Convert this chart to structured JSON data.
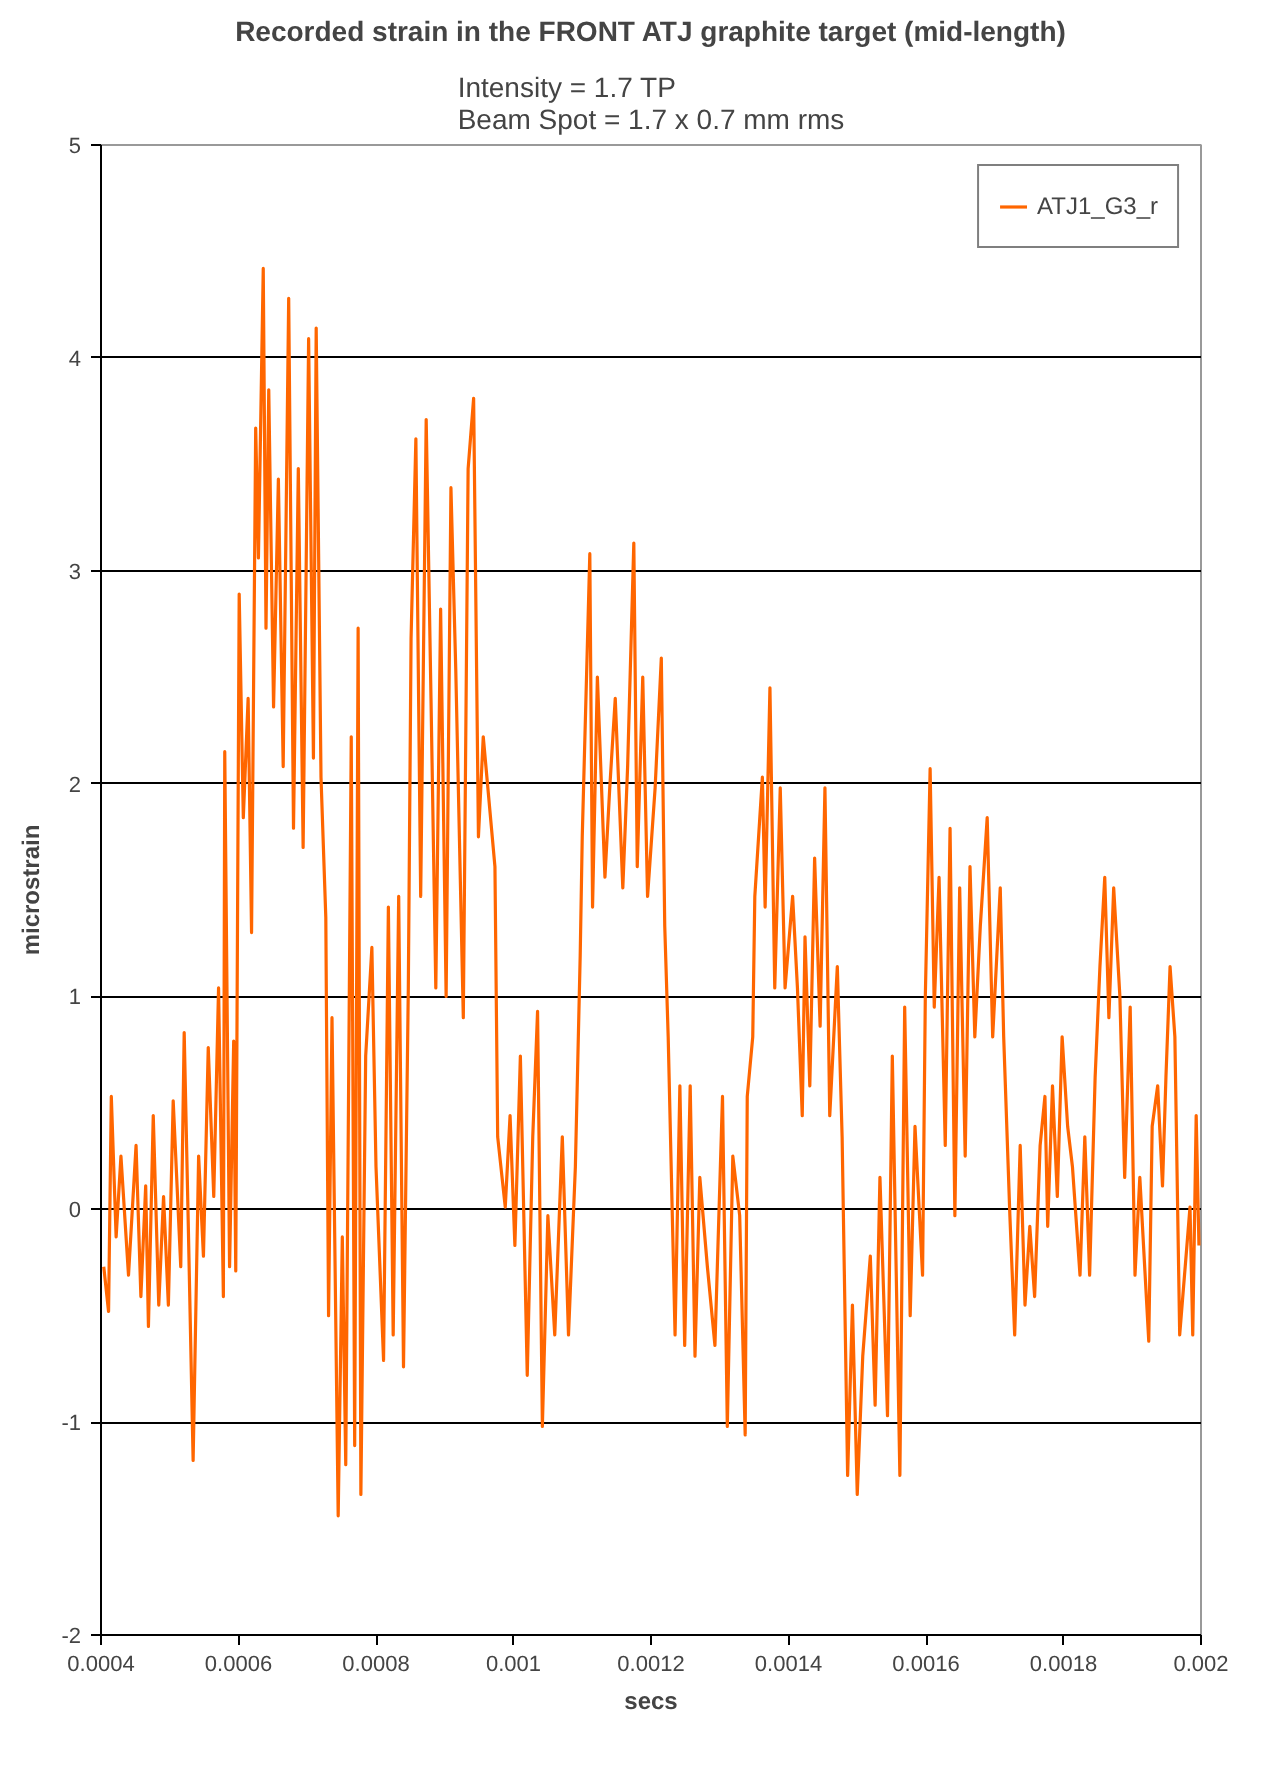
{
  "chart_data": {
    "type": "line",
    "title": "Recorded strain in the FRONT ATJ graphite target (mid-length)",
    "subtitle": "Intensity = 1.7 TP\nBeam Spot = 1.7 x 0.7 mm rms",
    "xlabel": "secs",
    "ylabel": "microstrain",
    "x": [
      0.000404,
      0.000411,
      0.000415,
      0.000422,
      0.000429,
      0.00044,
      0.000451,
      0.000458,
      0.000465,
      0.000469,
      0.000476,
      0.000484,
      0.000491,
      0.000498,
      0.000505,
      0.000516,
      0.000521,
      0.000527,
      0.000534,
      0.000542,
      0.000549,
      0.000556,
      0.000564,
      0.000571,
      0.000578,
      0.00058,
      0.000587,
      0.000593,
      0.000596,
      0.000601,
      0.000607,
      0.000614,
      0.000619,
      0.000625,
      0.000629,
      0.000636,
      0.00064,
      0.000644,
      0.000651,
      0.000658,
      0.000665,
      0.000673,
      0.00068,
      0.000687,
      0.000694,
      0.000702,
      0.000709,
      0.000713,
      0.00072,
      0.000727,
      0.000731,
      0.000736,
      0.000745,
      0.000751,
      0.000756,
      0.000764,
      0.000769,
      0.000774,
      0.000778,
      0.000785,
      0.000794,
      0.0008,
      0.000811,
      0.000818,
      0.000825,
      0.000833,
      0.00084,
      0.000847,
      0.000851,
      0.000858,
      0.000865,
      0.000873,
      0.00088,
      0.000887,
      0.000894,
      0.000902,
      0.000909,
      0.000916,
      0.000927,
      0.000934,
      0.000942,
      0.000949,
      0.000956,
      0.000973,
      0.000977,
      0.000988,
      0.000995,
      0.001002,
      0.00101,
      0.00102,
      0.001028,
      0.001035,
      0.001042,
      0.00105,
      0.00106,
      0.001071,
      0.00108,
      0.00109,
      0.001097,
      0.0011,
      0.001111,
      0.001115,
      0.001122,
      0.001133,
      0.00114,
      0.001148,
      0.001159,
      0.001166,
      0.001175,
      0.00118,
      0.001188,
      0.001195,
      0.001206,
      0.001215,
      0.00122,
      0.001225,
      0.001235,
      0.001242,
      0.001249,
      0.001257,
      0.001264,
      0.001271,
      0.001282,
      0.001293,
      0.001304,
      0.001311,
      0.001319,
      0.001329,
      0.001337,
      0.00134,
      0.001348,
      0.001351,
      0.001362,
      0.001366,
      0.001373,
      0.00138,
      0.001388,
      0.001395,
      0.001406,
      0.001413,
      0.00142,
      0.001424,
      0.001431,
      0.001438,
      0.001446,
      0.001453,
      0.00146,
      0.001471,
      0.001478,
      0.001486,
      0.001493,
      0.0015,
      0.001508,
      0.001519,
      0.001526,
      0.001533,
      0.001544,
      0.001551,
      0.001562,
      0.001569,
      0.001577,
      0.001584,
      0.001595,
      0.001599,
      0.001606,
      0.001612,
      0.001619,
      0.001628,
      0.001635,
      0.001642,
      0.001649,
      0.001657,
      0.001664,
      0.001671,
      0.001679,
      0.001689,
      0.001697,
      0.001708,
      0.001713,
      0.001722,
      0.001729,
      0.001737,
      0.001744,
      0.001751,
      0.001758,
      0.001766,
      0.001773,
      0.001777,
      0.001784,
      0.001791,
      0.001798,
      0.001806,
      0.001813,
      0.001824,
      0.001831,
      0.001838,
      0.001846,
      0.001853,
      0.00186,
      0.001866,
      0.001873,
      0.001882,
      0.001889,
      0.001897,
      0.001904,
      0.001911,
      0.001924,
      0.001929,
      0.001937,
      0.001944,
      0.001949,
      0.001955,
      0.001962,
      0.001969,
      0.001977,
      0.001984,
      0.001988,
      0.001993,
      0.001997
    ],
    "series": [
      {
        "name": "ATJ1_G3_r",
        "color": "#ff6600",
        "values": [
          -0.27,
          -0.48,
          0.53,
          -0.13,
          0.25,
          -0.31,
          0.3,
          -0.41,
          0.11,
          -0.55,
          0.44,
          -0.45,
          0.06,
          -0.45,
          0.51,
          -0.27,
          0.83,
          -0.08,
          -1.18,
          0.25,
          -0.22,
          0.76,
          0.06,
          1.04,
          -0.41,
          2.15,
          -0.27,
          0.79,
          -0.29,
          2.89,
          1.84,
          2.4,
          1.3,
          3.67,
          3.06,
          4.42,
          2.73,
          3.85,
          2.36,
          3.43,
          2.08,
          4.28,
          1.79,
          3.48,
          1.7,
          4.09,
          2.12,
          4.14,
          2.03,
          1.37,
          -0.5,
          0.9,
          -1.44,
          -0.13,
          -1.2,
          2.22,
          -1.11,
          2.73,
          -1.34,
          0.72,
          1.23,
          0.2,
          -0.71,
          1.42,
          -0.59,
          1.47,
          -0.74,
          1.04,
          2.68,
          3.62,
          1.47,
          3.71,
          2.4,
          1.04,
          2.82,
          1.0,
          3.39,
          2.54,
          0.9,
          3.48,
          3.81,
          1.75,
          2.22,
          1.61,
          0.34,
          0.01,
          0.44,
          -0.17,
          0.72,
          -0.78,
          0.34,
          0.93,
          -1.02,
          -0.03,
          -0.59,
          0.34,
          -0.59,
          0.2,
          1.19,
          1.75,
          3.08,
          1.42,
          2.5,
          1.56,
          1.98,
          2.4,
          1.51,
          2.08,
          3.13,
          1.61,
          2.5,
          1.47,
          1.98,
          2.59,
          1.33,
          0.81,
          -0.59,
          0.58,
          -0.64,
          0.58,
          -0.69,
          0.15,
          -0.27,
          -0.64,
          0.53,
          -1.02,
          0.25,
          -0.03,
          -1.06,
          0.53,
          0.81,
          1.47,
          2.03,
          1.42,
          2.45,
          1.04,
          1.98,
          1.04,
          1.47,
          1.04,
          0.44,
          1.28,
          0.58,
          1.65,
          0.86,
          1.98,
          0.44,
          1.14,
          0.34,
          -1.25,
          -0.45,
          -1.34,
          -0.69,
          -0.22,
          -0.92,
          0.15,
          -0.97,
          0.72,
          -1.25,
          0.95,
          -0.5,
          0.39,
          -0.31,
          1.0,
          2.07,
          0.95,
          1.56,
          0.3,
          1.79,
          -0.03,
          1.51,
          0.25,
          1.61,
          0.81,
          1.33,
          1.84,
          0.81,
          1.51,
          0.81,
          -0.03,
          -0.59,
          0.3,
          -0.45,
          -0.08,
          -0.41,
          0.3,
          0.53,
          -0.08,
          0.58,
          0.06,
          0.81,
          0.39,
          0.2,
          -0.31,
          0.34,
          -0.31,
          0.62,
          1.14,
          1.56,
          0.9,
          1.51,
          1.0,
          0.15,
          0.95,
          -0.31,
          0.15,
          -0.62,
          0.39,
          0.58,
          0.11,
          0.62,
          1.14,
          0.81,
          -0.59,
          -0.27,
          0.01,
          -0.59,
          0.44,
          -0.17
        ]
      }
    ],
    "xlim": [
      0.0004,
      0.002
    ],
    "xticks": [
      0.0004,
      0.0006,
      0.0008,
      0.001,
      0.0012,
      0.0014,
      0.0016,
      0.0018,
      0.002
    ],
    "ylim": [
      -2,
      5
    ],
    "yticks": [
      -2,
      -1,
      0,
      1,
      2,
      3,
      4,
      5
    ],
    "grid": "y",
    "legend": "top right"
  }
}
